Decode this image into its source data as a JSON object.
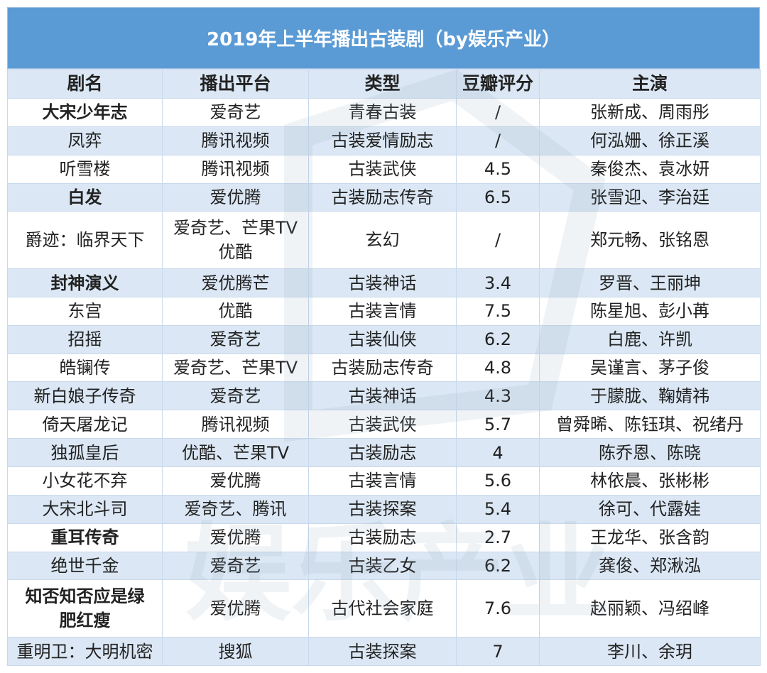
{
  "title": "2019年上半年播出古装剧（by娱乐产业）",
  "columns": [
    "剧名",
    "播出平台",
    "类型",
    "豆瓣评分",
    "主演"
  ],
  "rows": [
    {
      "name": [
        "大宋少年志"
      ],
      "bold": true,
      "platform": [
        "爱奇艺"
      ],
      "genre": "青春古装",
      "score": "/",
      "cast": "张新成、周雨彤"
    },
    {
      "name": [
        "凤弈"
      ],
      "bold": false,
      "platform": [
        "腾讯视频"
      ],
      "genre": "古装爱情励志",
      "score": "/",
      "cast": "何泓姗、徐正溪"
    },
    {
      "name": [
        "听雪楼"
      ],
      "bold": false,
      "platform": [
        "腾讯视频"
      ],
      "genre": "古装武侠",
      "score": "4.5",
      "cast": "秦俊杰、袁冰妍"
    },
    {
      "name": [
        "白发"
      ],
      "bold": true,
      "platform": [
        "爱优腾"
      ],
      "genre": "古装励志传奇",
      "score": "6.5",
      "cast": "张雪迎、李治廷"
    },
    {
      "name": [
        "爵迹：临界天下"
      ],
      "bold": false,
      "platform": [
        "爱奇艺、芒果TV",
        "优酷"
      ],
      "genre": "玄幻",
      "score": "/",
      "cast": "郑元畅、张铭恩"
    },
    {
      "name": [
        "封神演义"
      ],
      "bold": true,
      "platform": [
        "爱优腾芒"
      ],
      "genre": "古装神话",
      "score": "3.4",
      "cast": "罗晋、王丽坤"
    },
    {
      "name": [
        "东宫"
      ],
      "bold": false,
      "platform": [
        "优酷"
      ],
      "genre": "古装言情",
      "score": "7.5",
      "cast": "陈星旭、彭小苒"
    },
    {
      "name": [
        "招摇"
      ],
      "bold": false,
      "platform": [
        "爱奇艺"
      ],
      "genre": "古装仙侠",
      "score": "6.2",
      "cast": "白鹿、许凯"
    },
    {
      "name": [
        "皓镧传"
      ],
      "bold": false,
      "platform": [
        "爱奇艺、芒果TV"
      ],
      "genre": "古装励志传奇",
      "score": "4.8",
      "cast": "吴谨言、茅子俊"
    },
    {
      "name": [
        "新白娘子传奇"
      ],
      "bold": false,
      "platform": [
        "爱奇艺"
      ],
      "genre": "古装神话",
      "score": "4.3",
      "cast": "于朦胧、鞠婧祎"
    },
    {
      "name": [
        "倚天屠龙记"
      ],
      "bold": false,
      "platform": [
        "腾讯视频"
      ],
      "genre": "古装武侠",
      "score": "5.7",
      "cast": "曾舜晞、陈钰琪、祝绪丹"
    },
    {
      "name": [
        "独孤皇后"
      ],
      "bold": false,
      "platform": [
        "优酷、芒果TV"
      ],
      "genre": "古装励志",
      "score": "4",
      "cast": "陈乔恩、陈晓"
    },
    {
      "name": [
        "小女花不弃"
      ],
      "bold": false,
      "platform": [
        "爱优腾"
      ],
      "genre": "古装言情",
      "score": "5.6",
      "cast": "林依晨、张彬彬"
    },
    {
      "name": [
        "大宋北斗司"
      ],
      "bold": false,
      "platform": [
        "爱奇艺、腾讯"
      ],
      "genre": "古装探案",
      "score": "5.4",
      "cast": "徐可、代露娃"
    },
    {
      "name": [
        "重耳传奇"
      ],
      "bold": true,
      "platform": [
        "爱优腾"
      ],
      "genre": "古装励志",
      "score": "2.7",
      "cast": "王龙华、张含韵"
    },
    {
      "name": [
        "绝世千金"
      ],
      "bold": false,
      "platform": [
        "爱奇艺"
      ],
      "genre": "古装乙女",
      "score": "6.2",
      "cast": "龚俊、郑湫泓"
    },
    {
      "name": [
        "知否知否应是绿",
        "肥红瘦"
      ],
      "bold": true,
      "platform": [
        "爱优腾"
      ],
      "genre": "古代社会家庭",
      "score": "7.6",
      "cast": "赵丽颖、冯绍峰"
    },
    {
      "name": [
        "重明卫：大明机密"
      ],
      "bold": false,
      "platform": [
        "搜狐"
      ],
      "genre": "古装探案",
      "score": "7",
      "cast": "李川、余玥"
    }
  ],
  "watermark": {
    "text": "娱乐产业",
    "color": "#8aa0b8"
  },
  "colors": {
    "header_bg": "#5b9bd5",
    "band": "#dbe7f4",
    "border": "#c9d9ec"
  }
}
